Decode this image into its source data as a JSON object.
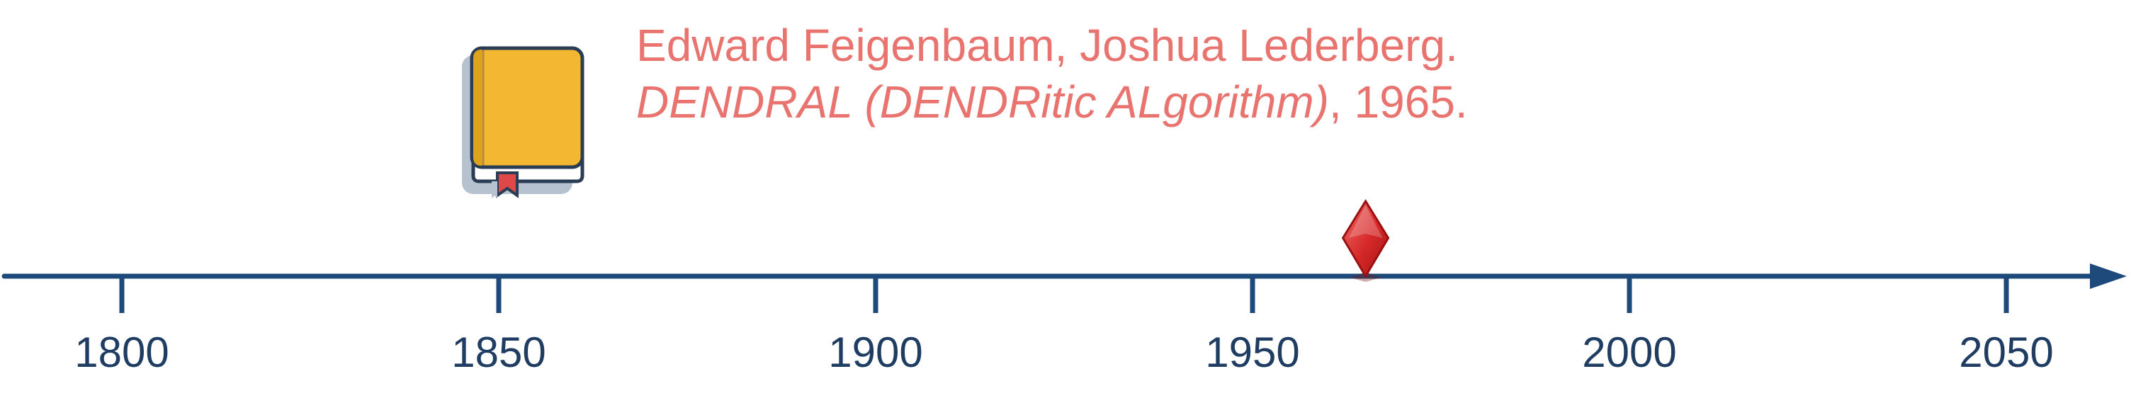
{
  "citation": {
    "authors": "Edward Feigenbaum, Joshua Lederberg.",
    "title": "DENDRAL (DENDRitic ALgorithm)",
    "title_suffix": ", 1965."
  },
  "timeline": {
    "ticks": [
      "1800",
      "1850",
      "1900",
      "1950",
      "2000",
      "2050"
    ],
    "marker_year": 1965,
    "axis_min": 1800,
    "axis_max": 2050
  },
  "icons": {
    "book": "book-icon",
    "marker": "diamond-marker-icon"
  },
  "colors": {
    "axis": "#1d4a7a",
    "tick_label": "#1f3d63",
    "citation_text": "#e8736f",
    "book_cover": "#f4b731",
    "book_spine": "#dfa21c",
    "book_outline": "#2b3d55",
    "book_shadow": "#b6c2cf",
    "bookmark": "#e04848",
    "marker_fill": "#d93030",
    "marker_dark": "#a51616"
  }
}
